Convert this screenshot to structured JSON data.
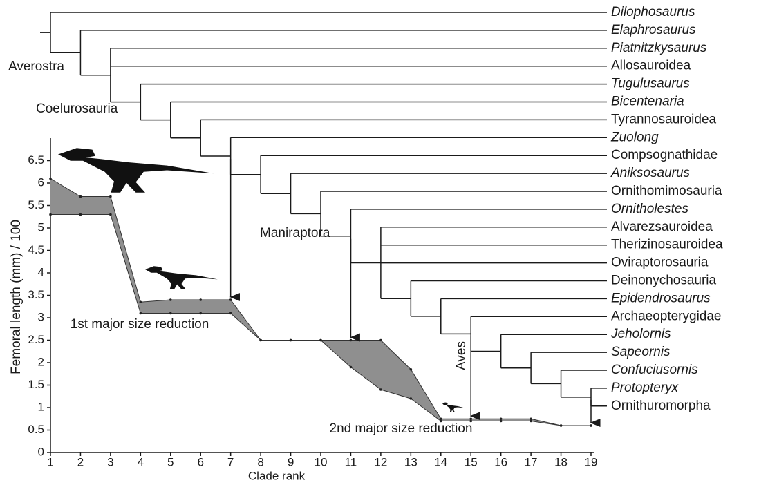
{
  "chart_data": {
    "type": "area-band",
    "x_label": "Clade rank",
    "y_label": "Femoral length (mm) / 100",
    "x": [
      1,
      2,
      3,
      4,
      5,
      6,
      7,
      8,
      9,
      10,
      11,
      12,
      13,
      14,
      15,
      16,
      17,
      18,
      19
    ],
    "series": [
      {
        "color": "#333333",
        "values": [
          6.1,
          5.7,
          5.7,
          3.35,
          3.4,
          3.4,
          3.4,
          2.5,
          2.5,
          2.5,
          2.5,
          2.5,
          1.85,
          0.75,
          0.75,
          0.75,
          0.75,
          0.6,
          0.6
        ]
      },
      {
        "color": "#333333",
        "values": [
          5.3,
          5.3,
          5.3,
          3.1,
          3.1,
          3.1,
          3.1,
          2.5,
          2.5,
          2.5,
          1.9,
          1.4,
          1.2,
          0.7,
          0.7,
          0.7,
          0.7,
          0.6,
          0.6
        ]
      }
    ],
    "fill": "#8f8f8f",
    "xlim": [
      1,
      19
    ],
    "xticks": [
      1,
      2,
      3,
      4,
      5,
      6,
      7,
      8,
      9,
      10,
      11,
      12,
      13,
      14,
      15,
      16,
      17,
      18,
      19
    ],
    "ylim": [
      0,
      7
    ],
    "yticks": [
      0,
      0.5,
      1,
      1.5,
      2,
      2.5,
      3,
      3.5,
      4,
      4.5,
      5,
      5.5,
      6,
      6.5
    ],
    "annotations": [
      "1st major size reduction",
      "2nd major size reduction"
    ]
  },
  "cladogram": {
    "taxa": [
      {
        "name": "Dilophosaurus",
        "italic": true
      },
      {
        "name": "Elaphrosaurus",
        "italic": true
      },
      {
        "name": "Piatnitzkysaurus",
        "italic": true
      },
      {
        "name": "Allosauroidea",
        "italic": false
      },
      {
        "name": "Tugulusaurus",
        "italic": true
      },
      {
        "name": "Bicentenaria",
        "italic": true
      },
      {
        "name": "Tyrannosauroidea",
        "italic": false
      },
      {
        "name": "Zuolong",
        "italic": true
      },
      {
        "name": "Compsognathidae",
        "italic": false
      },
      {
        "name": "Aniksosaurus",
        "italic": true
      },
      {
        "name": "Ornithomimosauria",
        "italic": false
      },
      {
        "name": "Ornitholestes",
        "italic": true
      },
      {
        "name": "Alvarezsauroidea",
        "italic": false
      },
      {
        "name": "Therizinosauroidea",
        "italic": false
      },
      {
        "name": "Oviraptorosauria",
        "italic": false
      },
      {
        "name": "Deinonychosauria",
        "italic": false
      },
      {
        "name": "Epidendrosaurus",
        "italic": true
      },
      {
        "name": "Archaeopterygidae",
        "italic": false
      },
      {
        "name": "Jeholornis",
        "italic": true
      },
      {
        "name": "Sapeornis",
        "italic": true
      },
      {
        "name": "Confuciusornis",
        "italic": true
      },
      {
        "name": "Protopteryx",
        "italic": true
      },
      {
        "name": "Ornithuromorpha",
        "italic": false
      }
    ],
    "clades": [
      "Averostra",
      "Coelurosauria",
      "Maniraptora",
      "Aves"
    ]
  }
}
